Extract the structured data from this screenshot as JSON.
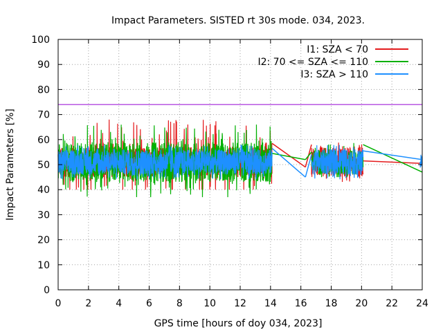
{
  "chart_data": {
    "type": "line",
    "title": "Impact Parameters. SISTED rt 30s mode. 034, 2023.",
    "xlabel": "GPS time [hours of doy 034, 2023]",
    "ylabel": "Impact Parameters [%]",
    "xlim": [
      0,
      24
    ],
    "ylim": [
      0,
      100
    ],
    "xticks": [
      0,
      2,
      4,
      6,
      8,
      10,
      12,
      14,
      16,
      18,
      20,
      22,
      24
    ],
    "yticks": [
      0,
      10,
      20,
      30,
      40,
      50,
      60,
      70,
      80,
      90,
      100
    ],
    "grid": true,
    "legend_position": "top-right",
    "reference_line": {
      "y": 74,
      "color": "#9400d3"
    },
    "series": [
      {
        "name": "I1: SZA < 70",
        "color": "#e41a1c",
        "segments": [
          {
            "x_start": 0.0,
            "x_end": 14.1,
            "center": 51,
            "spread": 6,
            "min": 40,
            "max": 68
          },
          {
            "x_start": 16.7,
            "x_end": 20.1,
            "center": 51,
            "spread": 6,
            "min": 42,
            "max": 59
          }
        ],
        "bridges": [
          {
            "x": [
              14.1,
              16.3
            ],
            "y": [
              58.5,
              49
            ]
          },
          {
            "x": [
              16.3,
              16.7
            ],
            "y": [
              49,
              58
            ]
          },
          {
            "x": [
              20.1,
              24.0
            ],
            "y": [
              51.5,
              50.5
            ]
          }
        ]
      },
      {
        "name": "I2: 70 <= SZA <= 110",
        "color": "#00b000",
        "segments": [
          {
            "x_start": 0.0,
            "x_end": 14.1,
            "center": 51,
            "spread": 8,
            "min": 37,
            "max": 66
          },
          {
            "x_start": 16.7,
            "x_end": 20.1,
            "center": 51,
            "spread": 5,
            "min": 45,
            "max": 59
          }
        ],
        "bridges": [
          {
            "x": [
              14.1,
              16.3
            ],
            "y": [
              54.5,
              52
            ]
          },
          {
            "x": [
              16.3,
              16.7
            ],
            "y": [
              52,
              55
            ]
          },
          {
            "x": [
              20.1,
              24.0
            ],
            "y": [
              58,
              47
            ]
          }
        ]
      },
      {
        "name": "I3: SZA > 110",
        "color": "#1e90ff",
        "segments": [
          {
            "x_start": 0.0,
            "x_end": 14.1,
            "center": 51,
            "spread": 5,
            "min": 40,
            "max": 58
          },
          {
            "x_start": 16.7,
            "x_end": 20.1,
            "center": 51,
            "spread": 5,
            "min": 43,
            "max": 58
          },
          {
            "x_start": 23.85,
            "x_end": 24.0,
            "center": 51,
            "spread": 3,
            "min": 48,
            "max": 57
          }
        ],
        "bridges": [
          {
            "x": [
              14.1,
              16.3
            ],
            "y": [
              56.5,
              45
            ]
          },
          {
            "x": [
              16.3,
              16.7
            ],
            "y": [
              45,
              54
            ]
          },
          {
            "x": [
              20.1,
              24.0
            ],
            "y": [
              55.5,
              52
            ]
          }
        ]
      }
    ]
  }
}
